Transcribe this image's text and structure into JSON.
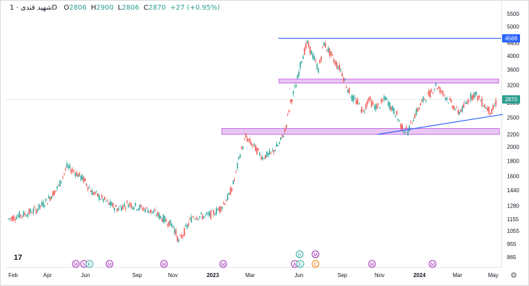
{
  "header": {
    "symbol": "شهيد قندی",
    "interval": "1D",
    "open_label": "O",
    "open": "2806",
    "high_label": "H",
    "high": "2900",
    "low_label": "L",
    "low": "2806",
    "close_label": "C",
    "close": "2870",
    "change": "+27 (+0.95%)"
  },
  "colors": {
    "up": "#26a69a",
    "down": "#ef5350",
    "line": "#2962ff",
    "zone": "#c36be0",
    "price_tag": "#2a9d8f"
  },
  "chart_data": {
    "type": "candlestick",
    "x_ticks": [
      "Feb",
      "Apr",
      "Jun",
      "Sep",
      "Nov",
      "2023",
      "Mar",
      "Jun",
      "Sep",
      "Nov",
      "2024",
      "Mar",
      "May"
    ],
    "y_ticks": [
      865,
      955,
      1055,
      1155,
      1280,
      1440,
      1600,
      1800,
      2000,
      2200,
      2500,
      2800,
      3200,
      3600,
      4000,
      4400,
      5000,
      5500
    ],
    "y_scale": "log",
    "last_price": 2870,
    "level_4568": 4568,
    "resistance_zone": [
      3250,
      3350
    ],
    "support_zone": [
      2200,
      2300
    ],
    "event_markers_top": [
      "D",
      "M"
    ],
    "event_markers_bottom": [
      "M",
      "S",
      "E",
      "M",
      "M",
      "M",
      "A",
      "E",
      "C",
      "M",
      "M"
    ],
    "series_path": [
      [
        0,
        1155
      ],
      [
        6,
        1180
      ],
      [
        12,
        1200
      ],
      [
        20,
        1240
      ],
      [
        28,
        1330
      ],
      [
        36,
        1480
      ],
      [
        42,
        1720
      ],
      [
        48,
        1650
      ],
      [
        54,
        1560
      ],
      [
        60,
        1420
      ],
      [
        66,
        1360
      ],
      [
        72,
        1300
      ],
      [
        78,
        1250
      ],
      [
        86,
        1300
      ],
      [
        94,
        1260
      ],
      [
        100,
        1240
      ],
      [
        106,
        1200
      ],
      [
        112,
        1150
      ],
      [
        118,
        1100
      ],
      [
        122,
        975
      ],
      [
        126,
        1050
      ],
      [
        132,
        1180
      ],
      [
        140,
        1180
      ],
      [
        146,
        1200
      ],
      [
        152,
        1260
      ],
      [
        158,
        1380
      ],
      [
        162,
        1560
      ],
      [
        166,
        1900
      ],
      [
        170,
        2150
      ],
      [
        176,
        2000
      ],
      [
        182,
        1850
      ],
      [
        188,
        1900
      ],
      [
        194,
        2050
      ],
      [
        198,
        2250
      ],
      [
        202,
        2800
      ],
      [
        206,
        3200
      ],
      [
        210,
        3900
      ],
      [
        214,
        4400
      ],
      [
        218,
        4000
      ],
      [
        222,
        3600
      ],
      [
        226,
        4400
      ],
      [
        230,
        4100
      ],
      [
        234,
        3800
      ],
      [
        238,
        3600
      ],
      [
        242,
        3200
      ],
      [
        246,
        2900
      ],
      [
        250,
        2800
      ],
      [
        254,
        2600
      ],
      [
        258,
        2900
      ],
      [
        262,
        2700
      ],
      [
        266,
        2750
      ],
      [
        270,
        2900
      ],
      [
        274,
        2700
      ],
      [
        278,
        2550
      ],
      [
        282,
        2300
      ],
      [
        286,
        2250
      ],
      [
        290,
        2500
      ],
      [
        294,
        2700
      ],
      [
        298,
        2900
      ],
      [
        302,
        3000
      ],
      [
        306,
        3200
      ],
      [
        310,
        3050
      ],
      [
        314,
        2900
      ],
      [
        318,
        2750
      ],
      [
        322,
        2600
      ],
      [
        326,
        2700
      ],
      [
        330,
        2900
      ],
      [
        334,
        3000
      ],
      [
        338,
        2850
      ],
      [
        342,
        2700
      ],
      [
        346,
        2600
      ],
      [
        350,
        2870
      ]
    ]
  }
}
